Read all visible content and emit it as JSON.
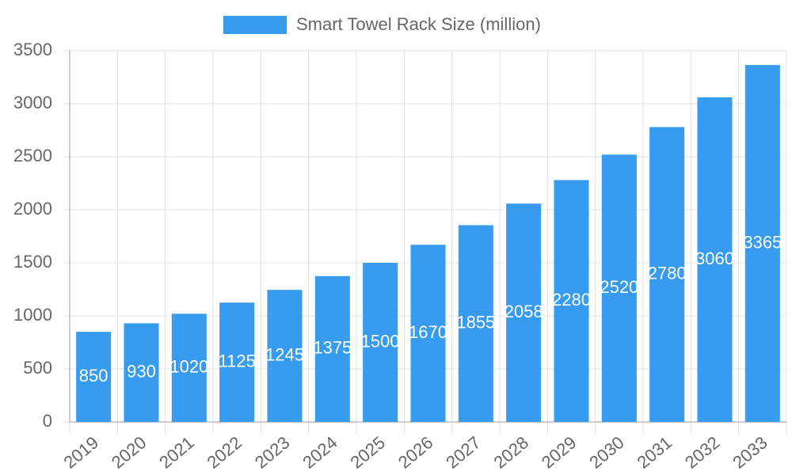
{
  "chart_data": {
    "type": "bar",
    "legend": "Smart Towel Rack Size (million)",
    "color": "#379cf0",
    "categories": [
      "2019",
      "2020",
      "2021",
      "2022",
      "2023",
      "2024",
      "2025",
      "2026",
      "2027",
      "2028",
      "2029",
      "2030",
      "2031",
      "2032",
      "2033"
    ],
    "values": [
      850,
      930,
      1020,
      1125,
      1245,
      1375,
      1500,
      1670,
      1855,
      2058,
      2280,
      2520,
      2780,
      3060,
      3365
    ],
    "ylim": [
      0,
      3500
    ],
    "yticks": [
      0,
      500,
      1000,
      1500,
      2000,
      2500,
      3000,
      3500
    ],
    "grid": true
  }
}
